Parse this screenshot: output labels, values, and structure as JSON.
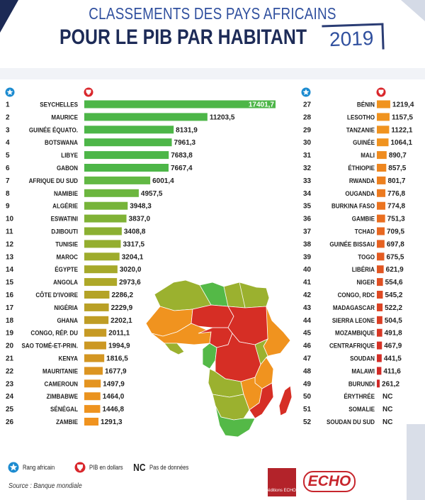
{
  "title": {
    "line1": "CLASSEMENTS DES PAYS AFRICAINS",
    "line2": "POUR LE PIB PAR HABITANT",
    "year": "2019"
  },
  "legend": {
    "rank": "Rang africain",
    "gdp": "PIB en dollars",
    "nc_symbol": "NC",
    "nc": "Pas de données"
  },
  "source": "Source : Banque mondiale",
  "logos": {
    "publisher": "éditions ECHO",
    "echo": "ECHO"
  },
  "colors": {
    "rank_icon": "#1c8bd0",
    "gdp_icon": "#d9262b",
    "nav": "#1d2b57",
    "map_green": "#54b947",
    "map_yellowgreen": "#9bb12f",
    "map_orange": "#f0931f",
    "map_red": "#d62e25"
  },
  "chart_data": {
    "type": "bar",
    "title": "POUR LE PIB PAR HABITANT 2019",
    "unit": "PIB en dollars",
    "xlim": [
      0,
      17401.7
    ],
    "rows": [
      {
        "rank": "1",
        "country": "SEYCHELLES",
        "value": 17401.7,
        "label": "17401,7",
        "color": "#4db648"
      },
      {
        "rank": "2",
        "country": "MAURICE",
        "value": 11203.5,
        "label": "11203,5",
        "color": "#4db648"
      },
      {
        "rank": "3",
        "country": "GUINÉE ÉQUATO.",
        "value": 8131.9,
        "label": "8131,9",
        "color": "#4db648"
      },
      {
        "rank": "4",
        "country": "BOTSWANA",
        "value": 7961.3,
        "label": "7961,3",
        "color": "#4db648"
      },
      {
        "rank": "5",
        "country": "LIBYE",
        "value": 7683.8,
        "label": "7683,8",
        "color": "#4db648"
      },
      {
        "rank": "6",
        "country": "GABON",
        "value": 7667.4,
        "label": "7667,4",
        "color": "#4db648"
      },
      {
        "rank": "7",
        "country": "AFRIQUE DU SUD",
        "value": 6001.4,
        "label": "6001,4",
        "color": "#62b844"
      },
      {
        "rank": "8",
        "country": "NAMIBIE",
        "value": 4957.5,
        "label": "4957,5",
        "color": "#6cb63f"
      },
      {
        "rank": "9",
        "country": "ALGÉRIE",
        "value": 3948.3,
        "label": "3948,3",
        "color": "#77b43a"
      },
      {
        "rank": "10",
        "country": "ESWATINI",
        "value": 3837.0,
        "label": "3837,0",
        "color": "#80b236"
      },
      {
        "rank": "11",
        "country": "DJIBOUTI",
        "value": 3408.8,
        "label": "3408,8",
        "color": "#8bb032"
      },
      {
        "rank": "12",
        "country": "TUNISIE",
        "value": 3317.5,
        "label": "3317,5",
        "color": "#94ae2f"
      },
      {
        "rank": "13",
        "country": "MAROC",
        "value": 3204.1,
        "label": "3204,1",
        "color": "#9eac2c"
      },
      {
        "rank": "14",
        "country": "ÉGYPTE",
        "value": 3020.0,
        "label": "3020,0",
        "color": "#a6a92a"
      },
      {
        "rank": "15",
        "country": "ANGOLA",
        "value": 2973.6,
        "label": "2973,6",
        "color": "#aea828"
      },
      {
        "rank": "16",
        "country": "CÔTE D'IVOIRE",
        "value": 2286.2,
        "label": "2286,2",
        "color": "#b4a327"
      },
      {
        "rank": "17",
        "country": "NIGÉRIA",
        "value": 2229.9,
        "label": "2229,9",
        "color": "#b9a026"
      },
      {
        "rank": "18",
        "country": "GHANA",
        "value": 2202.1,
        "label": "2202,1",
        "color": "#bf9d25"
      },
      {
        "rank": "19",
        "country": "CONGO, RÉP. DU",
        "value": 2011.1,
        "label": "2011,1",
        "color": "#c69a24"
      },
      {
        "rank": "20",
        "country": "SAO TOMÉ-ET-PRIN.",
        "value": 1994.9,
        "label": "1994,9",
        "color": "#cc9823"
      },
      {
        "rank": "21",
        "country": "KENYA",
        "value": 1816.5,
        "label": "1816,5",
        "color": "#d39622"
      },
      {
        "rank": "22",
        "country": "MAURITANIE",
        "value": 1677.9,
        "label": "1677,9",
        "color": "#dc9521"
      },
      {
        "rank": "23",
        "country": "CAMEROUN",
        "value": 1497.9,
        "label": "1497,9",
        "color": "#e49420"
      },
      {
        "rank": "24",
        "country": "ZIMBABWE",
        "value": 1464.0,
        "label": "1464,0",
        "color": "#ea931f"
      },
      {
        "rank": "25",
        "country": "SÉNÉGAL",
        "value": 1446.8,
        "label": "1446,8",
        "color": "#ee931f"
      },
      {
        "rank": "26",
        "country": "ZAMBIE",
        "value": 1291.3,
        "label": "1291,3",
        "color": "#f0931f"
      },
      {
        "rank": "27",
        "country": "BÉNIN",
        "value": 1219.4,
        "label": "1219,4",
        "color": "#f0931f"
      },
      {
        "rank": "28",
        "country": "LESOTHO",
        "value": 1157.5,
        "label": "1157,5",
        "color": "#f0931f"
      },
      {
        "rank": "29",
        "country": "TANZANIE",
        "value": 1122.1,
        "label": "1122,1",
        "color": "#f0931f"
      },
      {
        "rank": "30",
        "country": "GUINÉE",
        "value": 1064.1,
        "label": "1064,1",
        "color": "#f0931f"
      },
      {
        "rank": "31",
        "country": "MALI",
        "value": 890.7,
        "label": "890,7",
        "color": "#ef8c1f"
      },
      {
        "rank": "32",
        "country": "ÉTHIOPIE",
        "value": 857.5,
        "label": "857,5",
        "color": "#ee861f"
      },
      {
        "rank": "33",
        "country": "RWANDA",
        "value": 801.7,
        "label": "801,7",
        "color": "#ed801f"
      },
      {
        "rank": "34",
        "country": "OUGANDA",
        "value": 776.8,
        "label": "776,8",
        "color": "#ec7a20"
      },
      {
        "rank": "35",
        "country": "BURKINA FASO",
        "value": 774.8,
        "label": "774,8",
        "color": "#eb7420"
      },
      {
        "rank": "36",
        "country": "GAMBIE",
        "value": 751.3,
        "label": "751,3",
        "color": "#ea6e20"
      },
      {
        "rank": "37",
        "country": "TCHAD",
        "value": 709.5,
        "label": "709,5",
        "color": "#e86821"
      },
      {
        "rank": "38",
        "country": "GUINÉE BISSAU",
        "value": 697.8,
        "label": "697,8",
        "color": "#e66221"
      },
      {
        "rank": "39",
        "country": "TOGO",
        "value": 675.5,
        "label": "675,5",
        "color": "#e45c22"
      },
      {
        "rank": "40",
        "country": "LIBÉRIA",
        "value": 621.9,
        "label": "621,9",
        "color": "#e25622"
      },
      {
        "rank": "41",
        "country": "NIGER",
        "value": 554.6,
        "label": "554,6",
        "color": "#e05023"
      },
      {
        "rank": "42",
        "country": "CONGO, RDC",
        "value": 545.2,
        "label": "545,2",
        "color": "#de4a23"
      },
      {
        "rank": "43",
        "country": "MADAGASCAR",
        "value": 522.2,
        "label": "522,2",
        "color": "#dc4424"
      },
      {
        "rank": "44",
        "country": "SIERRA LEONE",
        "value": 504.5,
        "label": "504,5",
        "color": "#da3e24"
      },
      {
        "rank": "45",
        "country": "MOZAMBIQUE",
        "value": 491.8,
        "label": "491,8",
        "color": "#d83825"
      },
      {
        "rank": "46",
        "country": "CENTRAFRIQUE",
        "value": 467.9,
        "label": "467,9",
        "color": "#d63225"
      },
      {
        "rank": "47",
        "country": "SOUDAN",
        "value": 441.5,
        "label": "441,5",
        "color": "#d42d26"
      },
      {
        "rank": "48",
        "country": "MALAWI",
        "value": 411.6,
        "label": "411,6",
        "color": "#d22a26"
      },
      {
        "rank": "49",
        "country": "BURUNDI",
        "value": 261.2,
        "label": "261,2",
        "color": "#d02827"
      },
      {
        "rank": "50",
        "country": "ÉRYTHRÉE",
        "value": null,
        "label": "NC",
        "color": "#d02827"
      },
      {
        "rank": "51",
        "country": "SOMALIE",
        "value": null,
        "label": "NC",
        "color": "#d02827"
      },
      {
        "rank": "52",
        "country": "SOUDAN DU SUD",
        "value": null,
        "label": "NC",
        "color": "#d02827"
      }
    ]
  }
}
